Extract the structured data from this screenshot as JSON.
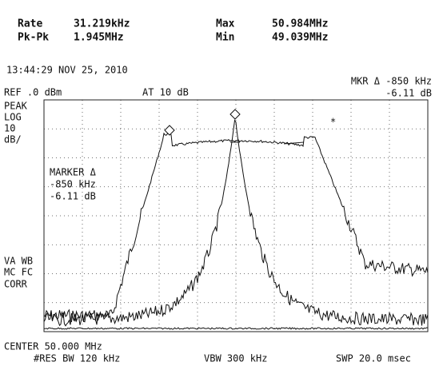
{
  "header": {
    "rate_label": "Rate",
    "rate_value": "31.219kHz",
    "pkpk_label": "Pk-Pk",
    "pkpk_value": "1.945MHz",
    "max_label": "Max",
    "max_value": "50.984MHz",
    "min_label": "Min",
    "min_value": "49.039MHz"
  },
  "display": {
    "timestamp": "13:44:29 NOV 25, 2010",
    "ref": "REF .0 dBm",
    "atten": "AT 10 dB",
    "mkr_line1": "MKR Δ -850 kHz",
    "mkr_line2": "-6.11 dB",
    "left_labels": [
      "PEAK",
      "LOG",
      "10",
      "dB/"
    ],
    "marker_box": [
      "MARKER Δ",
      "-850 kHz",
      "-6.11 dB"
    ],
    "left_labels2": [
      "VA WB",
      "MC FC",
      "CORR"
    ],
    "center": "CENTER 50.000 MHz",
    "res_bw": "#RES BW 120 kHz",
    "vbw": "VBW 300 kHz",
    "swp": "SWP 20.0 msec"
  }
}
